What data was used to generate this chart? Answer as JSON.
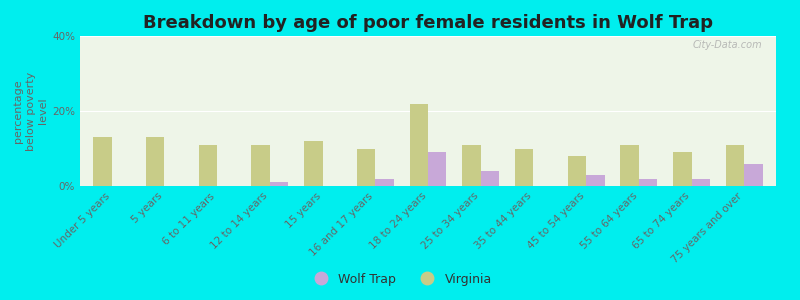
{
  "title": "Breakdown by age of poor female residents in Wolf Trap",
  "ylabel": "percentage\nbelow poverty\nlevel",
  "categories": [
    "Under 5 years",
    "5 years",
    "6 to 11 years",
    "12 to 14 years",
    "15 years",
    "16 and 17 years",
    "18 to 24 years",
    "25 to 34 years",
    "35 to 44 years",
    "45 to 54 years",
    "55 to 64 years",
    "65 to 74 years",
    "75 years and over"
  ],
  "wolf_trap": [
    0,
    0,
    0,
    1,
    0,
    2,
    9,
    4,
    0,
    3,
    2,
    2,
    6
  ],
  "virginia": [
    13,
    13,
    11,
    11,
    12,
    10,
    22,
    11,
    10,
    8,
    11,
    9,
    11
  ],
  "wolf_trap_color": "#c8a8d8",
  "virginia_color": "#c8cc88",
  "plot_bg": "#eef5e8",
  "outer_bg": "#00eeee",
  "ylim": [
    0,
    40
  ],
  "yticks": [
    0,
    20,
    40
  ],
  "ytick_labels": [
    "0%",
    "20%",
    "40%"
  ],
  "bar_width": 0.35,
  "legend_wolf_trap": "Wolf Trap",
  "legend_virginia": "Virginia",
  "title_fontsize": 13,
  "axis_label_fontsize": 8,
  "tick_fontsize": 7.5
}
